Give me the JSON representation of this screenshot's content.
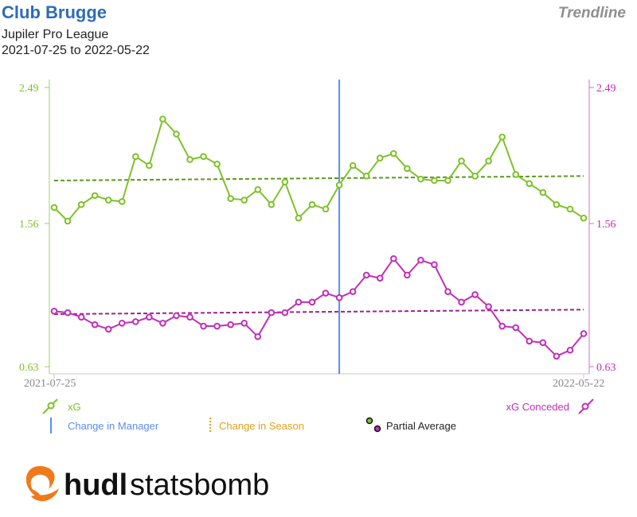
{
  "header": {
    "title": "Club Brugge",
    "competition": "Jupiler Pro League",
    "date_range": "2021-07-25 to 2022-05-22",
    "view_label": "Trendline"
  },
  "legend": {
    "xg_label": "xG",
    "xg_conceded_label": "xG Conceded",
    "manager_change_label": "Change in Manager",
    "season_change_label": "Change in Season",
    "partial_average_label": "Partial Average"
  },
  "logo": {
    "text_bold": "hudl",
    "text_light": "statsbomb"
  },
  "colors": {
    "xg": "#7dc22a",
    "xg_trend": "#5a9a1e",
    "xg_conceded": "#c02fb7",
    "xg_conceded_trend": "#9a2490",
    "manager_change": "#5b8def",
    "season_change": "#e0a21b",
    "title": "#2e6db4",
    "logo_orange": "#f07a1a"
  },
  "chart_data": {
    "type": "line",
    "x_labels": [
      "2021-07-25",
      "2022-05-22"
    ],
    "y_ticks": [
      "0.63",
      "1.56",
      "2.49"
    ],
    "ylim": [
      0.63,
      2.49
    ],
    "manager_change_index": 21,
    "series": [
      {
        "name": "xG",
        "axis": "left",
        "values": [
          1.69,
          1.6,
          1.71,
          1.77,
          1.74,
          1.73,
          2.03,
          1.97,
          2.28,
          2.18,
          2.01,
          2.03,
          1.98,
          1.75,
          1.74,
          1.81,
          1.71,
          1.86,
          1.62,
          1.71,
          1.68,
          1.84,
          1.97,
          1.9,
          2.02,
          2.05,
          1.95,
          1.88,
          1.87,
          1.87,
          2.0,
          1.9,
          2.0,
          2.16,
          1.91,
          1.85,
          1.79,
          1.71,
          1.68,
          1.62
        ],
        "trend": [
          1.87,
          1.9
        ]
      },
      {
        "name": "xG Conceded",
        "axis": "right",
        "values": [
          1.0,
          0.99,
          0.96,
          0.91,
          0.88,
          0.92,
          0.93,
          0.96,
          0.92,
          0.97,
          0.96,
          0.9,
          0.9,
          0.91,
          0.92,
          0.83,
          0.99,
          0.99,
          1.06,
          1.06,
          1.12,
          1.09,
          1.13,
          1.24,
          1.22,
          1.35,
          1.24,
          1.34,
          1.31,
          1.13,
          1.06,
          1.11,
          1.03,
          0.9,
          0.89,
          0.8,
          0.79,
          0.7,
          0.74,
          0.85
        ],
        "trend": [
          0.98,
          1.01
        ]
      }
    ]
  }
}
